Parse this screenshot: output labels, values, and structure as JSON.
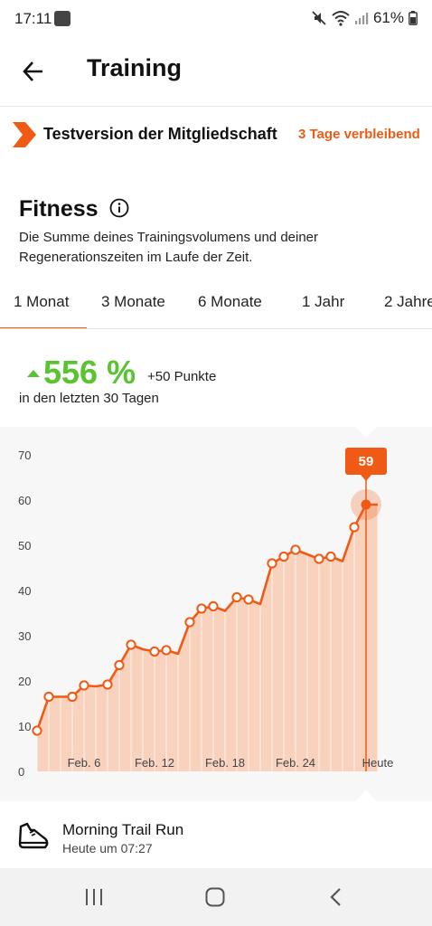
{
  "status_bar": {
    "time": "17:11",
    "battery": "61%"
  },
  "header": {
    "title": "Training"
  },
  "trial_banner": {
    "label": "Testversion der Mitgliedschaft",
    "remaining": "3 Tage verbleibend"
  },
  "fitness": {
    "title": "Fitness",
    "description": "Die Summe deines Trainingsvolumens und deiner Regenerationszeiten im Laufe der Zeit."
  },
  "tabs": [
    {
      "label": "1 Monat",
      "selected": true
    },
    {
      "label": "3 Monate",
      "selected": false
    },
    {
      "label": "6 Monate",
      "selected": false
    },
    {
      "label": "1 Jahr",
      "selected": false
    },
    {
      "label": "2 Jahre",
      "selected": false
    }
  ],
  "summary": {
    "change": "556 %",
    "points": "+50 Punkte",
    "period": "in den letzten 30 Tagen"
  },
  "chart_data": {
    "type": "area",
    "categories": [
      "Feb. 6",
      "Feb. 12",
      "Feb. 18",
      "Feb. 24",
      "Heute"
    ],
    "x": [
      1,
      2,
      3,
      4,
      5,
      6,
      7,
      8,
      9,
      10,
      11,
      12,
      13,
      14,
      15,
      16,
      17,
      18,
      19,
      20,
      21,
      22,
      23,
      24,
      25,
      26,
      27,
      28,
      29,
      30
    ],
    "values": [
      9,
      16.5,
      16.5,
      16.5,
      19,
      18.8,
      19.2,
      23.5,
      28,
      27,
      26.5,
      26.8,
      26,
      33,
      36,
      36.5,
      35.5,
      38.5,
      38,
      37,
      46,
      47.5,
      49,
      48,
      47,
      47.5,
      46.5,
      54,
      59,
      59
    ],
    "markers": [
      1,
      2,
      4,
      5,
      7,
      8,
      9,
      11,
      12,
      14,
      15,
      16,
      18,
      19,
      21,
      22,
      23,
      25,
      26,
      28
    ],
    "highlight": {
      "x": 29,
      "value": 59,
      "label": "59"
    },
    "yticks": [
      0,
      10,
      20,
      30,
      40,
      50,
      60,
      70
    ],
    "ylim": [
      0,
      72
    ],
    "grid": false,
    "color": "#f05a14",
    "fill": "#f9cbb4"
  },
  "activity": {
    "name": "Morning Trail Run",
    "time": "Heute um 07:27"
  },
  "colors": {
    "accent": "#f05a14",
    "positive": "#5ac430",
    "text": "#111111"
  },
  "icons": {
    "back": "arrow-left-icon",
    "trial": "chevron-badge-icon",
    "info": "info-circle-icon",
    "activity": "running-shoe-icon",
    "nav_recents": "recents-icon",
    "nav_home": "home-icon",
    "nav_back": "nav-back-icon"
  }
}
